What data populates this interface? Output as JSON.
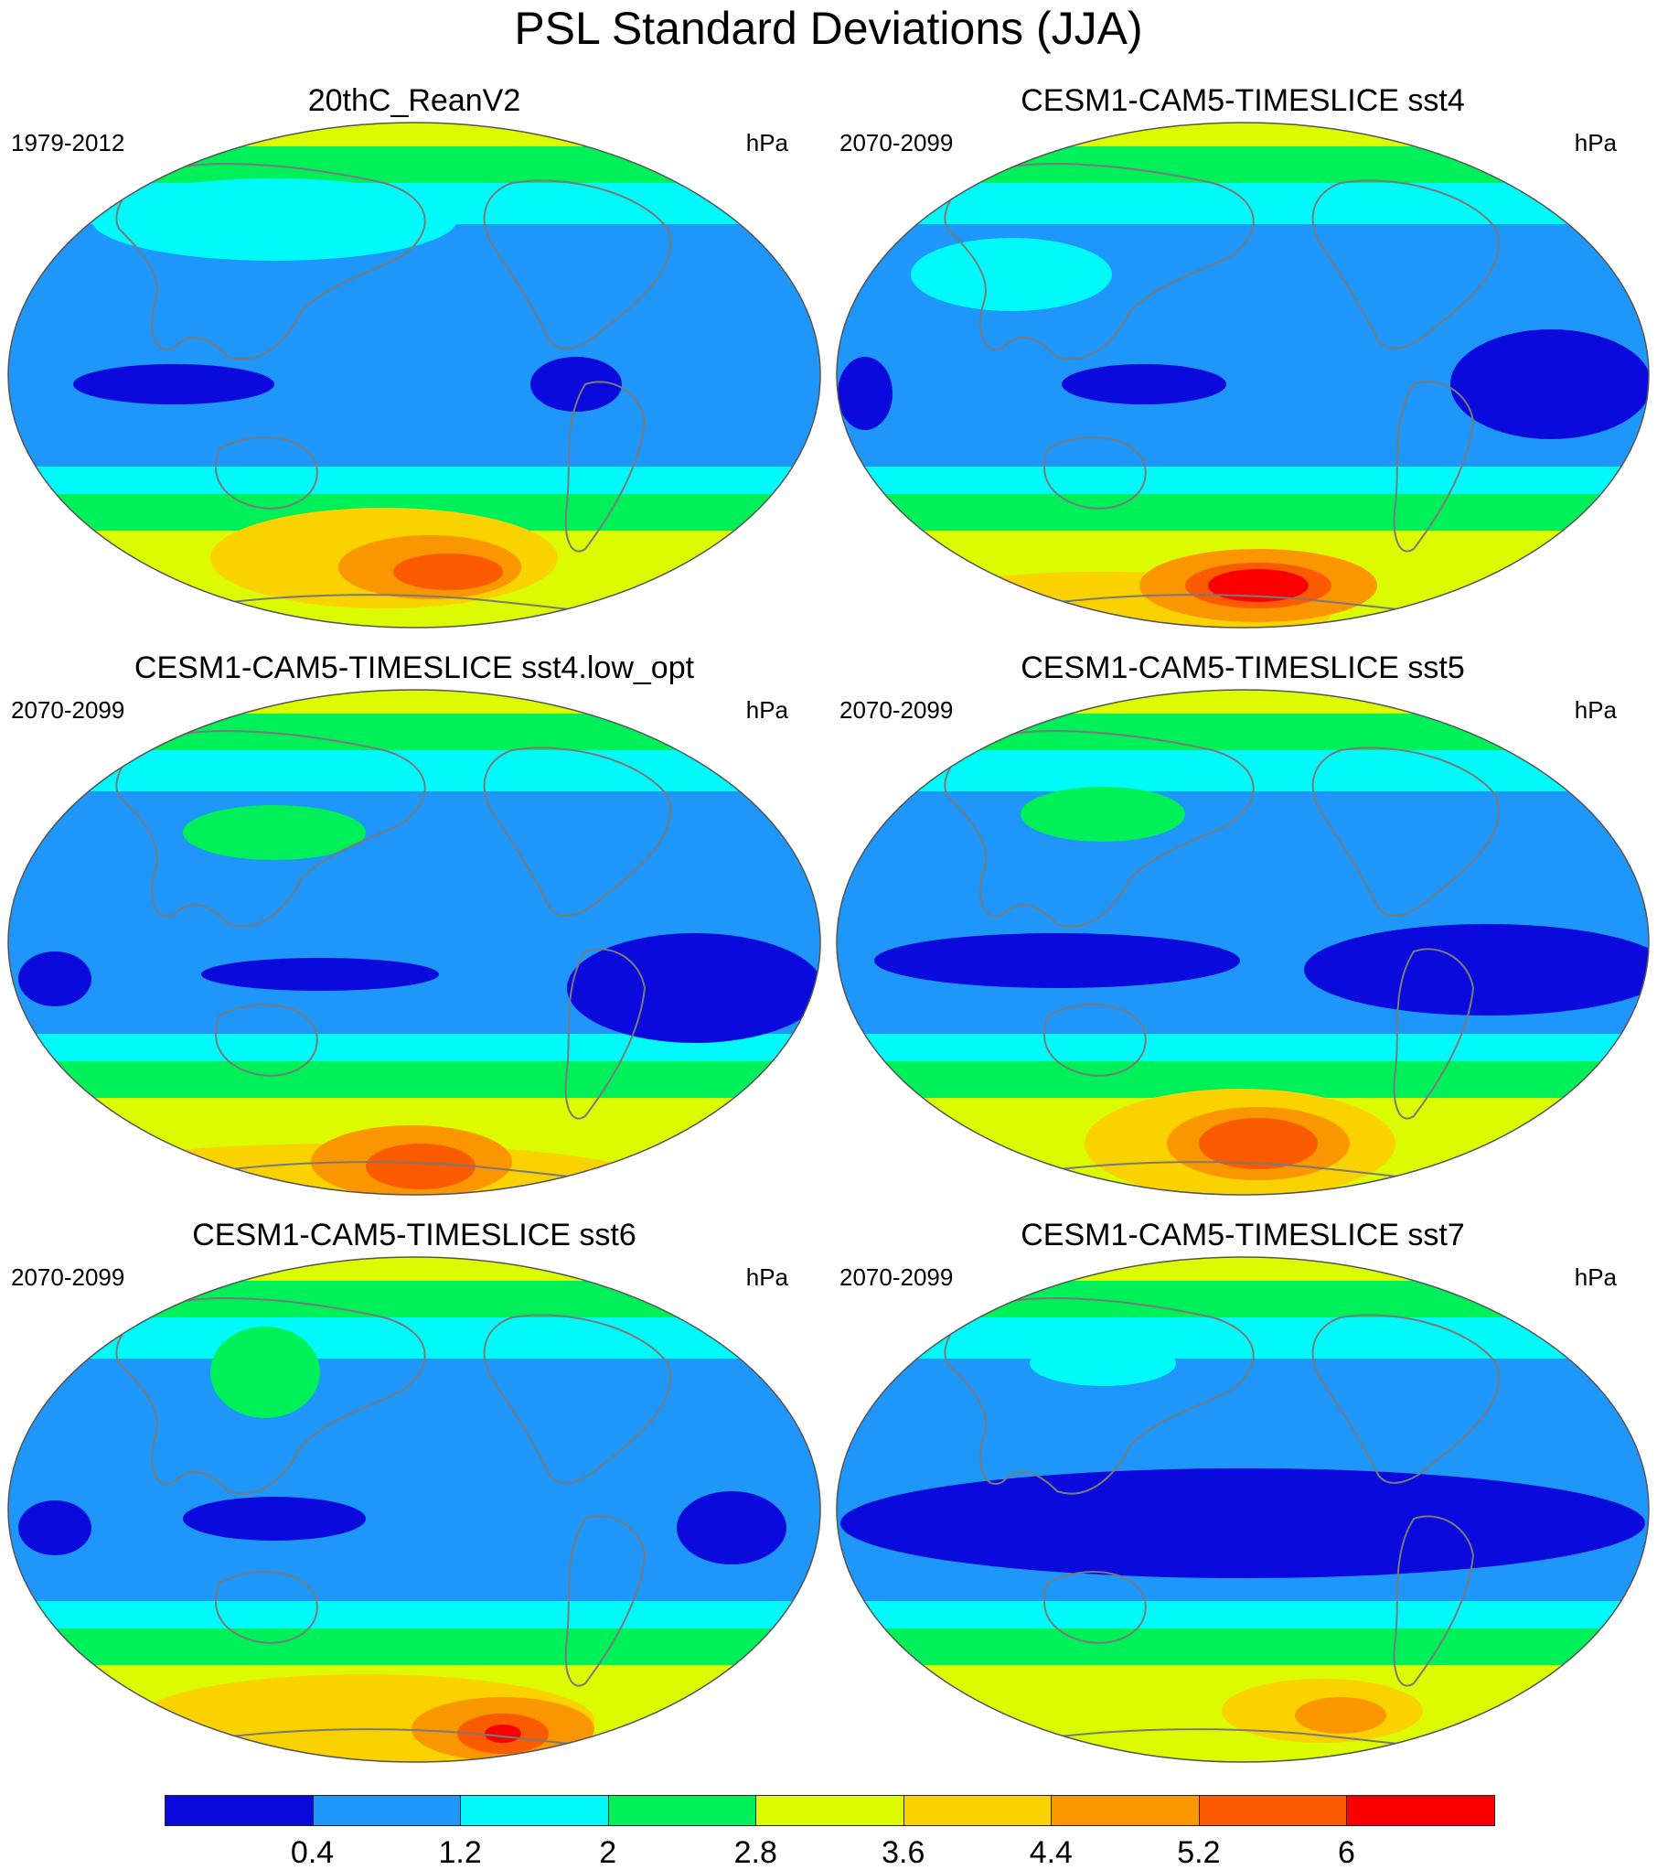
{
  "figure": {
    "title": "PSL Standard Deviations (JJA)"
  },
  "colors": {
    "c1": "#0a0adc",
    "c2": "#1e96fa",
    "c3": "#00fafa",
    "c4": "#00f05a",
    "c5": "#dcfa00",
    "c6": "#fad200",
    "c7": "#fa9600",
    "c8": "#fa5a00",
    "c9": "#fa0000",
    "coast": "#7a7a7a"
  },
  "panels": [
    {
      "title": "20thC_ReanV2",
      "period": "1979-2012",
      "unit": "hPa"
    },
    {
      "title": "CESM1-CAM5-TIMESLICE sst4",
      "period": "2070-2099",
      "unit": "hPa"
    },
    {
      "title": "CESM1-CAM5-TIMESLICE sst4.low_opt",
      "period": "2070-2099",
      "unit": "hPa"
    },
    {
      "title": "CESM1-CAM5-TIMESLICE sst5",
      "period": "2070-2099",
      "unit": "hPa"
    },
    {
      "title": "CESM1-CAM5-TIMESLICE sst6",
      "period": "2070-2099",
      "unit": "hPa"
    },
    {
      "title": "CESM1-CAM5-TIMESLICE sst7",
      "period": "2070-2099",
      "unit": "hPa"
    }
  ],
  "colorbar": {
    "labels": [
      "0.4",
      "1.2",
      "2",
      "2.8",
      "3.6",
      "4.4",
      "5.2",
      "6"
    ],
    "colors": [
      "#0a0adc",
      "#1e96fa",
      "#00fafa",
      "#00f05a",
      "#dcfa00",
      "#fad200",
      "#fa9600",
      "#fa5a00",
      "#fa0000"
    ]
  }
}
